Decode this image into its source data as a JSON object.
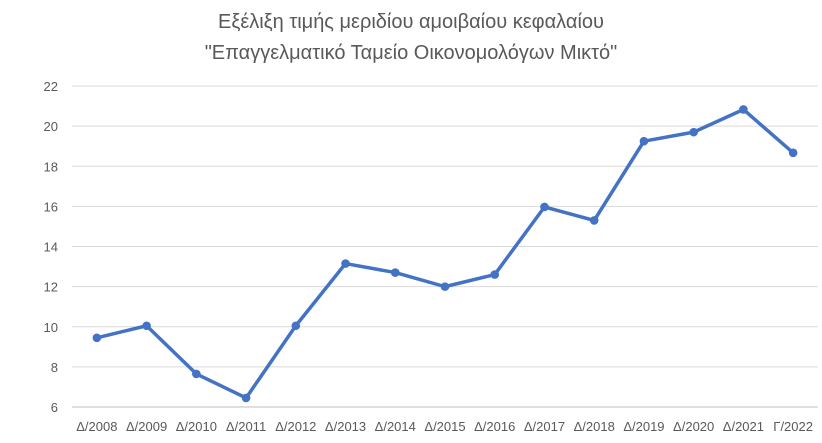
{
  "chart_data": {
    "type": "line",
    "title_lines": [
      "Εξέλιξη τιμής μεριδίου αμοιβαίου κεφαλαίου",
      "\"Επαγγελματικό Ταμείο Οικονομολόγων Μικτό\""
    ],
    "categories": [
      "Δ/2008",
      "Δ/2009",
      "Δ/2010",
      "Δ/2011",
      "Δ/2012",
      "Δ/2013",
      "Δ/2014",
      "Δ/2015",
      "Δ/2016",
      "Δ/2017",
      "Δ/2018",
      "Δ/2019",
      "Δ/2020",
      "Δ/2021",
      "Γ/2022"
    ],
    "values": [
      9.45,
      10.05,
      7.65,
      6.45,
      10.05,
      13.15,
      12.7,
      12.0,
      12.6,
      15.97,
      15.3,
      19.25,
      19.7,
      20.83,
      18.67
    ],
    "ylim": [
      6,
      22
    ],
    "yticks": [
      "6",
      "8",
      "10",
      "12",
      "14",
      "16",
      "18",
      "20",
      "22"
    ],
    "grid": true,
    "legend": "none",
    "colors": {
      "line": "#4472C4",
      "grid": "#D9D9D9",
      "axis": "#BFBFBF",
      "text": "#595959"
    }
  }
}
